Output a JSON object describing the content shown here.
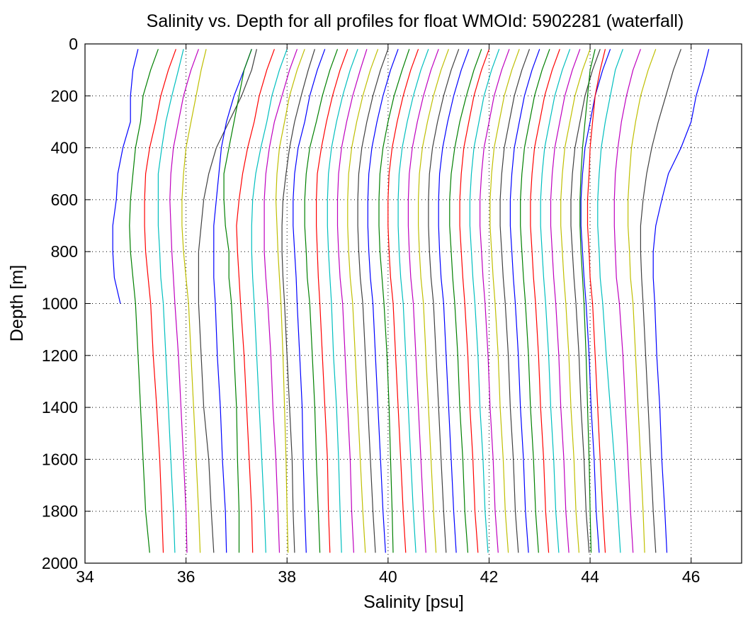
{
  "chart_data": {
    "type": "line",
    "title": "Salinity vs. Depth for all profiles for float WMOId: 5902281 (waterfall)",
    "xlabel": "Salinity [psu]",
    "ylabel": "Depth [m]",
    "xlim": [
      34,
      47
    ],
    "ylim": [
      0,
      2000
    ],
    "y_reversed": true,
    "grid": true,
    "x_ticks": [
      "34",
      "36",
      "38",
      "40",
      "42",
      "44",
      "46"
    ],
    "y_ticks": [
      "0",
      "200",
      "400",
      "600",
      "800",
      "1000",
      "1200",
      "1400",
      "1600",
      "1800",
      "2000"
    ],
    "depths": [
      20,
      100,
      200,
      300,
      400,
      500,
      600,
      700,
      800,
      900,
      1000,
      1200,
      1400,
      1600,
      1800,
      1960
    ],
    "color_cycle": [
      "#0000ff",
      "#008000",
      "#ff0000",
      "#00bfbf",
      "#bf00bf",
      "#bfbf00",
      "#404040"
    ],
    "series": [
      {
        "color": "#0000ff",
        "values": [
          35.05,
          34.95,
          34.9,
          34.9,
          34.75,
          34.65,
          34.62,
          34.55,
          34.55,
          34.58,
          34.7,
          null,
          null,
          null,
          null,
          null
        ]
      },
      {
        "color": "#008000",
        "values": [
          35.45,
          35.3,
          35.15,
          35.1,
          35.0,
          34.95,
          34.9,
          34.88,
          34.9,
          34.95,
          35.0,
          35.05,
          35.1,
          35.15,
          35.2,
          35.28
        ]
      },
      {
        "color": "#ff0000",
        "values": [
          35.8,
          35.65,
          35.5,
          35.4,
          35.28,
          35.2,
          35.18,
          35.18,
          35.2,
          35.25,
          35.3,
          35.35,
          35.42,
          35.48,
          35.52,
          35.55
        ]
      },
      {
        "color": "#00bfbf",
        "values": [
          35.95,
          35.85,
          35.72,
          35.6,
          35.52,
          35.45,
          35.45,
          35.45,
          35.48,
          35.5,
          35.55,
          35.6,
          35.65,
          35.7,
          35.75,
          35.78
        ]
      },
      {
        "color": "#bf00bf",
        "values": [
          36.25,
          36.1,
          35.95,
          35.85,
          35.75,
          35.7,
          35.68,
          35.7,
          35.72,
          35.75,
          35.78,
          35.85,
          35.9,
          35.95,
          36.0,
          36.02
        ]
      },
      {
        "color": "#bfbf00",
        "values": [
          36.4,
          36.3,
          36.2,
          36.1,
          36.0,
          35.95,
          35.92,
          35.92,
          35.95,
          36.0,
          36.05,
          36.1,
          36.15,
          36.2,
          36.25,
          36.28
        ]
      },
      {
        "color": "#404040",
        "values": [
          37.4,
          37.3,
          37.1,
          36.85,
          36.6,
          36.45,
          36.35,
          36.3,
          36.25,
          36.25,
          36.25,
          36.3,
          36.35,
          36.45,
          36.5,
          36.55
        ]
      },
      {
        "color": "#0000ff",
        "values": [
          37.3,
          37.15,
          36.95,
          36.8,
          36.7,
          36.65,
          36.6,
          36.55,
          36.55,
          36.55,
          36.58,
          36.62,
          36.68,
          36.72,
          36.78,
          36.8
        ]
      },
      {
        "color": "#008000",
        "values": [
          37.3,
          37.15,
          37.05,
          36.95,
          36.85,
          36.75,
          36.75,
          36.78,
          36.85,
          36.85,
          36.9,
          36.95,
          37.0,
          37.02,
          37.05,
          37.05
        ]
      },
      {
        "color": "#ff0000",
        "values": [
          37.75,
          37.6,
          37.45,
          37.35,
          37.22,
          37.12,
          37.05,
          37.0,
          37.02,
          37.05,
          37.08,
          37.15,
          37.2,
          37.25,
          37.3,
          37.32
        ]
      },
      {
        "color": "#00bfbf",
        "values": [
          38.0,
          37.85,
          37.7,
          37.6,
          37.48,
          37.38,
          37.32,
          37.3,
          37.3,
          37.32,
          37.35,
          37.4,
          37.45,
          37.5,
          37.55,
          37.58
        ]
      },
      {
        "color": "#bf00bf",
        "values": [
          38.2,
          38.05,
          37.9,
          37.75,
          37.65,
          37.58,
          37.55,
          37.55,
          37.55,
          37.58,
          37.62,
          37.68,
          37.72,
          37.78,
          37.82,
          37.85
        ]
      },
      {
        "color": "#bfbf00",
        "values": [
          38.35,
          38.2,
          38.05,
          37.95,
          37.85,
          37.8,
          37.78,
          37.8,
          37.82,
          37.85,
          37.88,
          37.92,
          37.95,
          37.98,
          38.0,
          38.02
        ]
      },
      {
        "color": "#404040",
        "values": [
          38.55,
          38.42,
          38.28,
          38.15,
          38.05,
          37.98,
          37.92,
          37.9,
          37.9,
          37.92,
          37.95,
          38.0,
          38.05,
          38.1,
          38.12,
          38.15
        ]
      },
      {
        "color": "#0000ff",
        "values": [
          38.75,
          38.6,
          38.45,
          38.35,
          38.22,
          38.15,
          38.12,
          38.12,
          38.15,
          38.18,
          38.2,
          38.25,
          38.3,
          38.32,
          38.35,
          38.38
        ]
      },
      {
        "color": "#008000",
        "values": [
          39.0,
          38.85,
          38.7,
          38.58,
          38.45,
          38.38,
          38.35,
          38.35,
          38.38,
          38.4,
          38.45,
          38.5,
          38.55,
          38.58,
          38.62,
          38.65
        ]
      },
      {
        "color": "#ff0000",
        "values": [
          39.2,
          39.05,
          38.9,
          38.78,
          38.68,
          38.6,
          38.58,
          38.58,
          38.6,
          38.62,
          38.65,
          38.7,
          38.75,
          38.8,
          38.82,
          38.85
        ]
      },
      {
        "color": "#00bfbf",
        "values": [
          39.4,
          39.25,
          39.1,
          38.98,
          38.88,
          38.82,
          38.8,
          38.8,
          38.82,
          38.85,
          38.88,
          38.92,
          38.98,
          39.02,
          39.05,
          39.08
        ]
      },
      {
        "color": "#bf00bf",
        "values": [
          39.58,
          39.45,
          39.3,
          39.18,
          39.08,
          39.02,
          39.0,
          39.0,
          39.02,
          39.05,
          39.1,
          39.15,
          39.2,
          39.25,
          39.28,
          39.32
        ]
      },
      {
        "color": "#bfbf00",
        "values": [
          39.8,
          39.65,
          39.5,
          39.38,
          39.28,
          39.22,
          39.2,
          39.2,
          39.22,
          39.25,
          39.3,
          39.35,
          39.4,
          39.45,
          39.5,
          39.55
        ]
      },
      {
        "color": "#404040",
        "values": [
          40.0,
          39.85,
          39.7,
          39.58,
          39.48,
          39.42,
          39.4,
          39.4,
          39.42,
          39.45,
          39.5,
          39.55,
          39.6,
          39.65,
          39.7,
          39.75
        ]
      },
      {
        "color": "#0000ff",
        "values": [
          40.2,
          40.05,
          39.9,
          39.78,
          39.68,
          39.62,
          39.6,
          39.6,
          39.62,
          39.65,
          39.7,
          39.75,
          39.8,
          39.85,
          39.9,
          39.95
        ]
      },
      {
        "color": "#008000",
        "values": [
          40.42,
          40.28,
          40.12,
          40.0,
          39.9,
          39.84,
          39.82,
          39.82,
          39.84,
          39.88,
          39.92,
          39.98,
          40.02,
          40.05,
          40.08,
          40.1
        ]
      },
      {
        "color": "#ff0000",
        "values": [
          40.6,
          40.45,
          40.3,
          40.18,
          40.08,
          40.02,
          40.0,
          40.0,
          40.02,
          40.05,
          40.1,
          40.15,
          40.2,
          40.25,
          40.3,
          40.35
        ]
      },
      {
        "color": "#00bfbf",
        "values": [
          40.8,
          40.65,
          40.5,
          40.38,
          40.28,
          40.22,
          40.2,
          40.2,
          40.22,
          40.25,
          40.3,
          40.35,
          40.4,
          40.45,
          40.5,
          40.55
        ]
      },
      {
        "color": "#bf00bf",
        "values": [
          41.0,
          40.85,
          40.7,
          40.58,
          40.48,
          40.42,
          40.4,
          40.4,
          40.42,
          40.45,
          40.5,
          40.55,
          40.6,
          40.65,
          40.7,
          40.75
        ]
      },
      {
        "color": "#bfbf00",
        "values": [
          41.2,
          41.05,
          40.9,
          40.78,
          40.68,
          40.62,
          40.6,
          40.6,
          40.62,
          40.65,
          40.7,
          40.75,
          40.8,
          40.85,
          40.9,
          40.95
        ]
      },
      {
        "color": "#404040",
        "values": [
          41.4,
          41.25,
          41.1,
          40.98,
          40.88,
          40.82,
          40.8,
          40.8,
          40.82,
          40.85,
          40.9,
          40.95,
          41.0,
          41.05,
          41.1,
          41.15
        ]
      },
      {
        "color": "#0000ff",
        "values": [
          41.6,
          41.45,
          41.3,
          41.18,
          41.08,
          41.02,
          41.0,
          41.0,
          41.02,
          41.05,
          41.1,
          41.15,
          41.2,
          41.25,
          41.3,
          41.35
        ]
      },
      {
        "color": "#008000",
        "values": [
          41.85,
          41.7,
          41.55,
          41.42,
          41.32,
          41.25,
          41.22,
          41.22,
          41.25,
          41.28,
          41.32,
          41.38,
          41.42,
          41.48,
          41.52,
          41.58
        ]
      },
      {
        "color": "#ff0000",
        "values": [
          42.0,
          41.85,
          41.7,
          41.6,
          41.5,
          41.45,
          41.42,
          41.42,
          41.45,
          41.48,
          41.52,
          41.58,
          41.62,
          41.68,
          41.72,
          41.78
        ]
      },
      {
        "color": "#00bfbf",
        "values": [
          42.2,
          42.05,
          41.9,
          41.8,
          41.7,
          41.65,
          41.62,
          41.62,
          41.65,
          41.68,
          41.72,
          41.78,
          41.82,
          41.88,
          41.92,
          41.98
        ]
      },
      {
        "color": "#bf00bf",
        "values": [
          42.4,
          42.25,
          42.1,
          42.0,
          41.9,
          41.85,
          41.82,
          41.82,
          41.85,
          41.88,
          41.92,
          41.98,
          42.02,
          42.08,
          42.12,
          42.18
        ]
      },
      {
        "color": "#bfbf00",
        "values": [
          42.6,
          42.45,
          42.3,
          42.2,
          42.1,
          42.05,
          42.02,
          42.02,
          42.05,
          42.08,
          42.12,
          42.18,
          42.22,
          42.28,
          42.32,
          42.38
        ]
      },
      {
        "color": "#404040",
        "values": [
          42.8,
          42.65,
          42.5,
          42.4,
          42.3,
          42.25,
          42.22,
          42.22,
          42.25,
          42.28,
          42.32,
          42.38,
          42.42,
          42.48,
          42.52,
          42.58
        ]
      },
      {
        "color": "#0000ff",
        "values": [
          43.0,
          42.85,
          42.7,
          42.6,
          42.5,
          42.45,
          42.42,
          42.42,
          42.45,
          42.48,
          42.52,
          42.58,
          42.62,
          42.68,
          42.72,
          42.78
        ]
      },
      {
        "color": "#008000",
        "values": [
          43.2,
          43.05,
          42.9,
          42.8,
          42.7,
          42.65,
          42.62,
          42.62,
          42.65,
          42.68,
          42.72,
          42.78,
          42.82,
          42.88,
          42.92,
          42.98
        ]
      },
      {
        "color": "#ff0000",
        "values": [
          43.4,
          43.25,
          43.1,
          43.0,
          42.9,
          42.85,
          42.82,
          42.82,
          42.85,
          42.88,
          42.92,
          42.98,
          43.02,
          43.08,
          43.12,
          43.18
        ]
      },
      {
        "color": "#00bfbf",
        "values": [
          43.6,
          43.45,
          43.3,
          43.2,
          43.1,
          43.05,
          43.02,
          43.02,
          43.05,
          43.08,
          43.12,
          43.18,
          43.22,
          43.28,
          43.32,
          43.38
        ]
      },
      {
        "color": "#bf00bf",
        "values": [
          43.8,
          43.65,
          43.5,
          43.4,
          43.3,
          43.25,
          43.22,
          43.22,
          43.25,
          43.28,
          43.32,
          43.38,
          43.42,
          43.48,
          43.52,
          43.58
        ]
      },
      {
        "color": "#bfbf00",
        "values": [
          44.0,
          43.85,
          43.7,
          43.6,
          43.5,
          43.45,
          43.42,
          43.42,
          43.45,
          43.48,
          43.52,
          43.58,
          43.62,
          43.68,
          43.72,
          43.78
        ]
      },
      {
        "color": "#404040",
        "values": [
          44.2,
          44.05,
          43.9,
          43.8,
          43.7,
          43.65,
          43.62,
          43.62,
          43.65,
          43.68,
          43.72,
          43.78,
          43.82,
          43.88,
          43.92,
          43.98
        ]
      },
      {
        "color": "#0000ff",
        "values": [
          44.4,
          44.25,
          44.1,
          44.0,
          43.9,
          43.85,
          43.82,
          43.82,
          43.85,
          43.88,
          43.92,
          43.98,
          44.02,
          44.08,
          44.12,
          44.18
        ]
      },
      {
        "color": "#008000",
        "values": [
          44.1,
          44.0,
          43.95,
          43.9,
          43.85,
          43.82,
          43.8,
          43.8,
          43.82,
          43.85,
          43.88,
          43.92,
          43.95,
          43.98,
          44.0,
          44.02
        ]
      },
      {
        "color": "#ff0000",
        "values": [
          44.3,
          44.2,
          44.1,
          44.05,
          44.0,
          43.98,
          43.95,
          43.95,
          43.98,
          44.0,
          44.05,
          44.1,
          44.15,
          44.2,
          44.25,
          44.3
        ]
      },
      {
        "color": "#00bfbf",
        "values": [
          44.65,
          44.5,
          44.4,
          44.3,
          44.22,
          44.18,
          44.15,
          44.15,
          44.18,
          44.2,
          44.25,
          44.32,
          44.4,
          44.48,
          44.55,
          44.6
        ]
      },
      {
        "color": "#bf00bf",
        "values": [
          45.0,
          44.85,
          44.72,
          44.62,
          44.55,
          44.5,
          44.48,
          44.48,
          44.5,
          44.52,
          44.58,
          44.65,
          44.7,
          44.75,
          44.8,
          44.85
        ]
      },
      {
        "color": "#bfbf00",
        "values": [
          45.3,
          45.15,
          45.0,
          44.9,
          44.82,
          44.78,
          44.75,
          44.75,
          44.78,
          44.8,
          44.85,
          44.9,
          44.95,
          45.0,
          45.05,
          45.08
        ]
      },
      {
        "color": "#404040",
        "values": [
          45.8,
          45.65,
          45.5,
          45.35,
          45.22,
          45.12,
          45.05,
          45.0,
          45.0,
          45.02,
          45.05,
          45.1,
          45.15,
          45.2,
          45.25,
          45.3
        ]
      },
      {
        "color": "#0000ff",
        "values": [
          46.35,
          46.25,
          46.1,
          46.0,
          45.8,
          45.55,
          45.42,
          45.3,
          45.25,
          45.25,
          45.28,
          45.32,
          45.38,
          45.42,
          45.48,
          45.52
        ]
      }
    ]
  }
}
